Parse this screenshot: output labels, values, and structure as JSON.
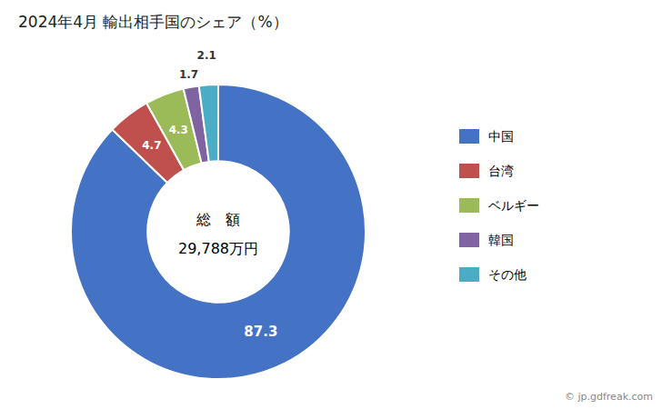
{
  "chart_data": {
    "type": "donut",
    "title": "2024年4月 輸出相手国のシェア（%）",
    "categories": [
      "中国",
      "台湾",
      "ベルギー",
      "韓国",
      "その他"
    ],
    "values": [
      87.3,
      4.7,
      4.3,
      1.7,
      2.1
    ],
    "colors": [
      "#4472C4",
      "#C0504D",
      "#9BBB59",
      "#8064A2",
      "#4BACC6"
    ],
    "data_labels": true,
    "legend": "right",
    "annotations": [
      "総　額",
      "29,788万円",
      "© jp.gdfreak.com"
    ]
  }
}
